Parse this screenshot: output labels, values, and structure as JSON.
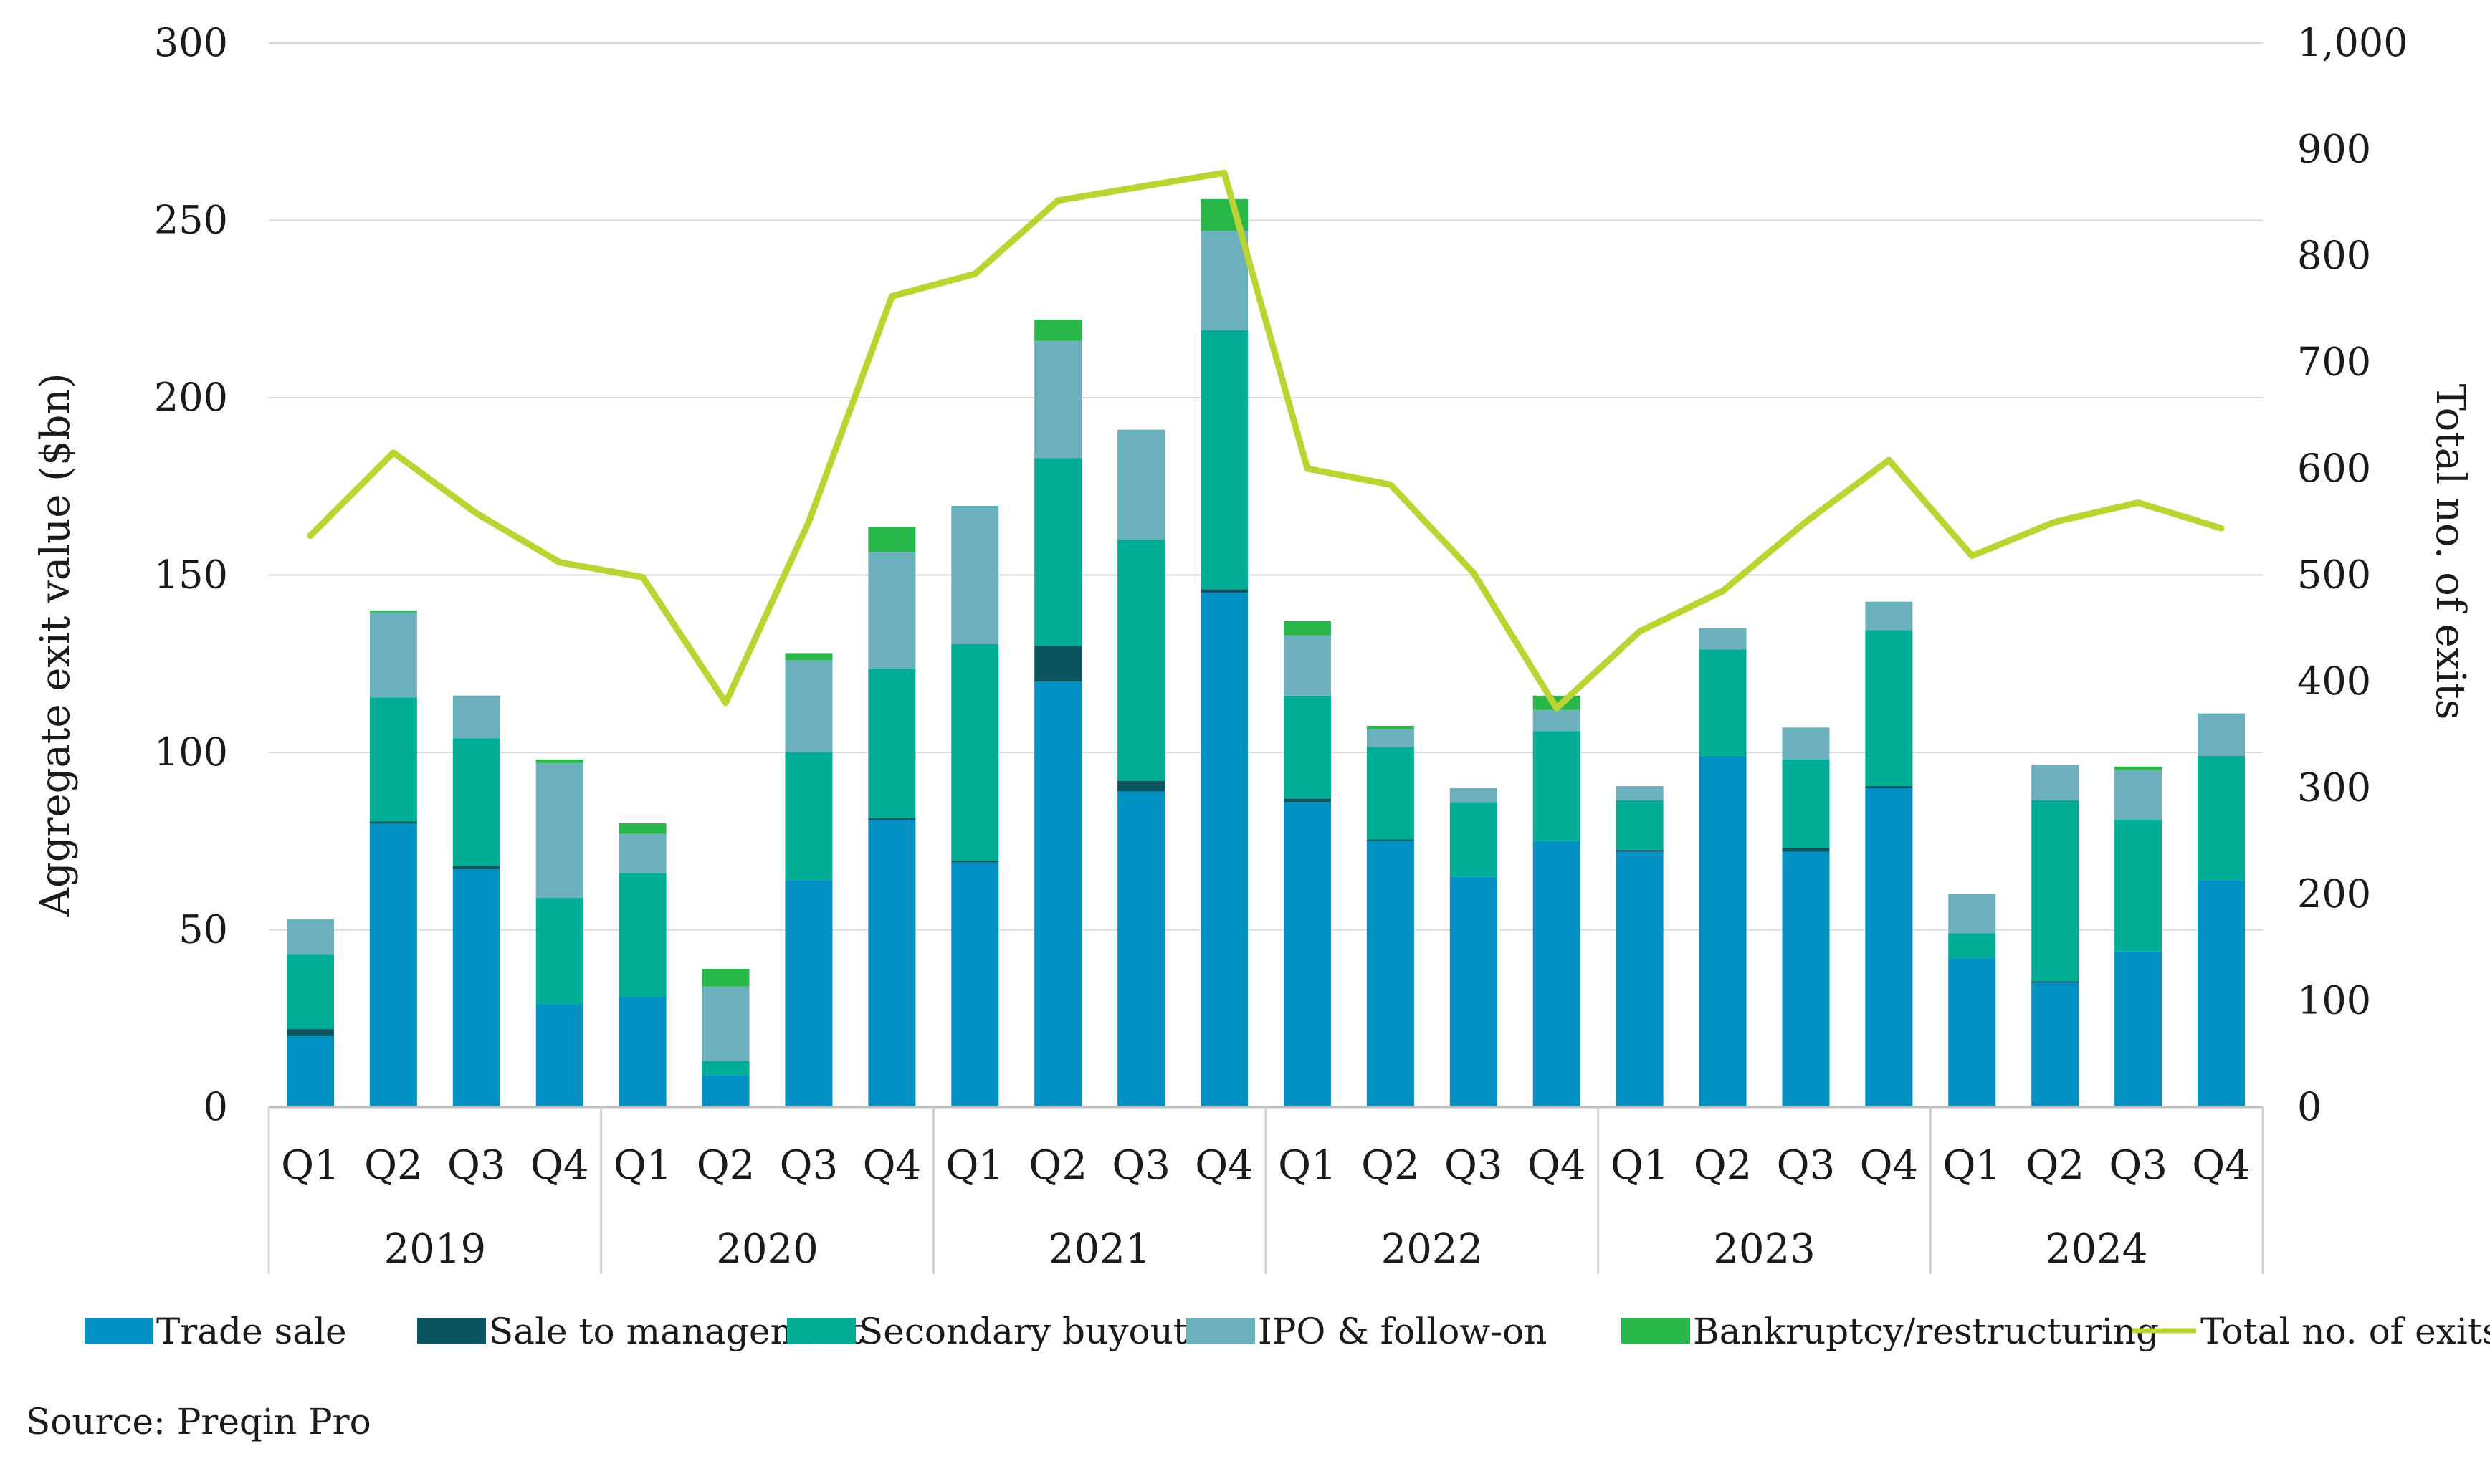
{
  "chart_data": {
    "type": "bar",
    "stacked": true,
    "combo_line": true,
    "title": "",
    "ylabel": "Aggregate exit value ($bn)",
    "y2label": "Total no. of exits",
    "ylim": [
      0,
      300
    ],
    "y2lim": [
      0,
      1000
    ],
    "yticks": [
      "0",
      "50",
      "100",
      "150",
      "200",
      "250",
      "300"
    ],
    "y2ticks": [
      "0",
      "100",
      "200",
      "300",
      "400",
      "500",
      "600",
      "700",
      "800",
      "900",
      "1,000"
    ],
    "grid": true,
    "legend_position": "bottom",
    "years": [
      "2019",
      "2020",
      "2021",
      "2022",
      "2023",
      "2024"
    ],
    "categories": [
      "Q1",
      "Q2",
      "Q3",
      "Q4",
      "Q1",
      "Q2",
      "Q3",
      "Q4",
      "Q1",
      "Q2",
      "Q3",
      "Q4",
      "Q1",
      "Q2",
      "Q3",
      "Q4",
      "Q1",
      "Q2",
      "Q3",
      "Q4",
      "Q1",
      "Q2",
      "Q3",
      "Q4"
    ],
    "series": [
      {
        "name": "Trade sale",
        "color": "#0090c2",
        "values": [
          20,
          80,
          67,
          29,
          31,
          9,
          64,
          81,
          69,
          120,
          89,
          145,
          86,
          75,
          65,
          75,
          72,
          99,
          72,
          90,
          42,
          35,
          44,
          64
        ]
      },
      {
        "name": "Sale to management",
        "color": "#0a5560",
        "values": [
          2,
          0.5,
          1,
          0,
          0,
          0,
          0,
          0.5,
          0.5,
          10,
          3,
          1,
          1,
          0.5,
          0,
          0,
          0.5,
          0,
          1,
          0.5,
          0,
          0.5,
          0,
          0
        ]
      },
      {
        "name": "Secondary buyout",
        "color": "#00ad95",
        "values": [
          21,
          35,
          36,
          30,
          35,
          4,
          36,
          42,
          61,
          53,
          68,
          73,
          29,
          26,
          21,
          31,
          14,
          30,
          25,
          44,
          7,
          51,
          37,
          35
        ]
      },
      {
        "name": "IPO & follow-on",
        "color": "#6cb0be",
        "values": [
          10,
          24,
          12,
          38,
          11,
          21,
          26,
          33,
          39,
          33,
          31,
          28,
          17,
          5,
          4,
          6,
          4,
          6,
          9,
          8,
          11,
          10,
          14,
          12
        ]
      },
      {
        "name": "Bankruptcy/restructuring",
        "color": "#2ab74a",
        "values": [
          0,
          0.5,
          0,
          1,
          3,
          5,
          2,
          7,
          0,
          6,
          0,
          9,
          4,
          1,
          0,
          4,
          0,
          0,
          0,
          0,
          0,
          0,
          1,
          0
        ]
      }
    ],
    "line": {
      "name": "Total no. of exits",
      "color": "#bcd431",
      "values": [
        537,
        615,
        558,
        512,
        498,
        380,
        550,
        762,
        783,
        852,
        865,
        878,
        600,
        585,
        502,
        375,
        447,
        485,
        550,
        608,
        518,
        550,
        568,
        544
      ]
    }
  },
  "source_text": "Source: Preqin Pro"
}
